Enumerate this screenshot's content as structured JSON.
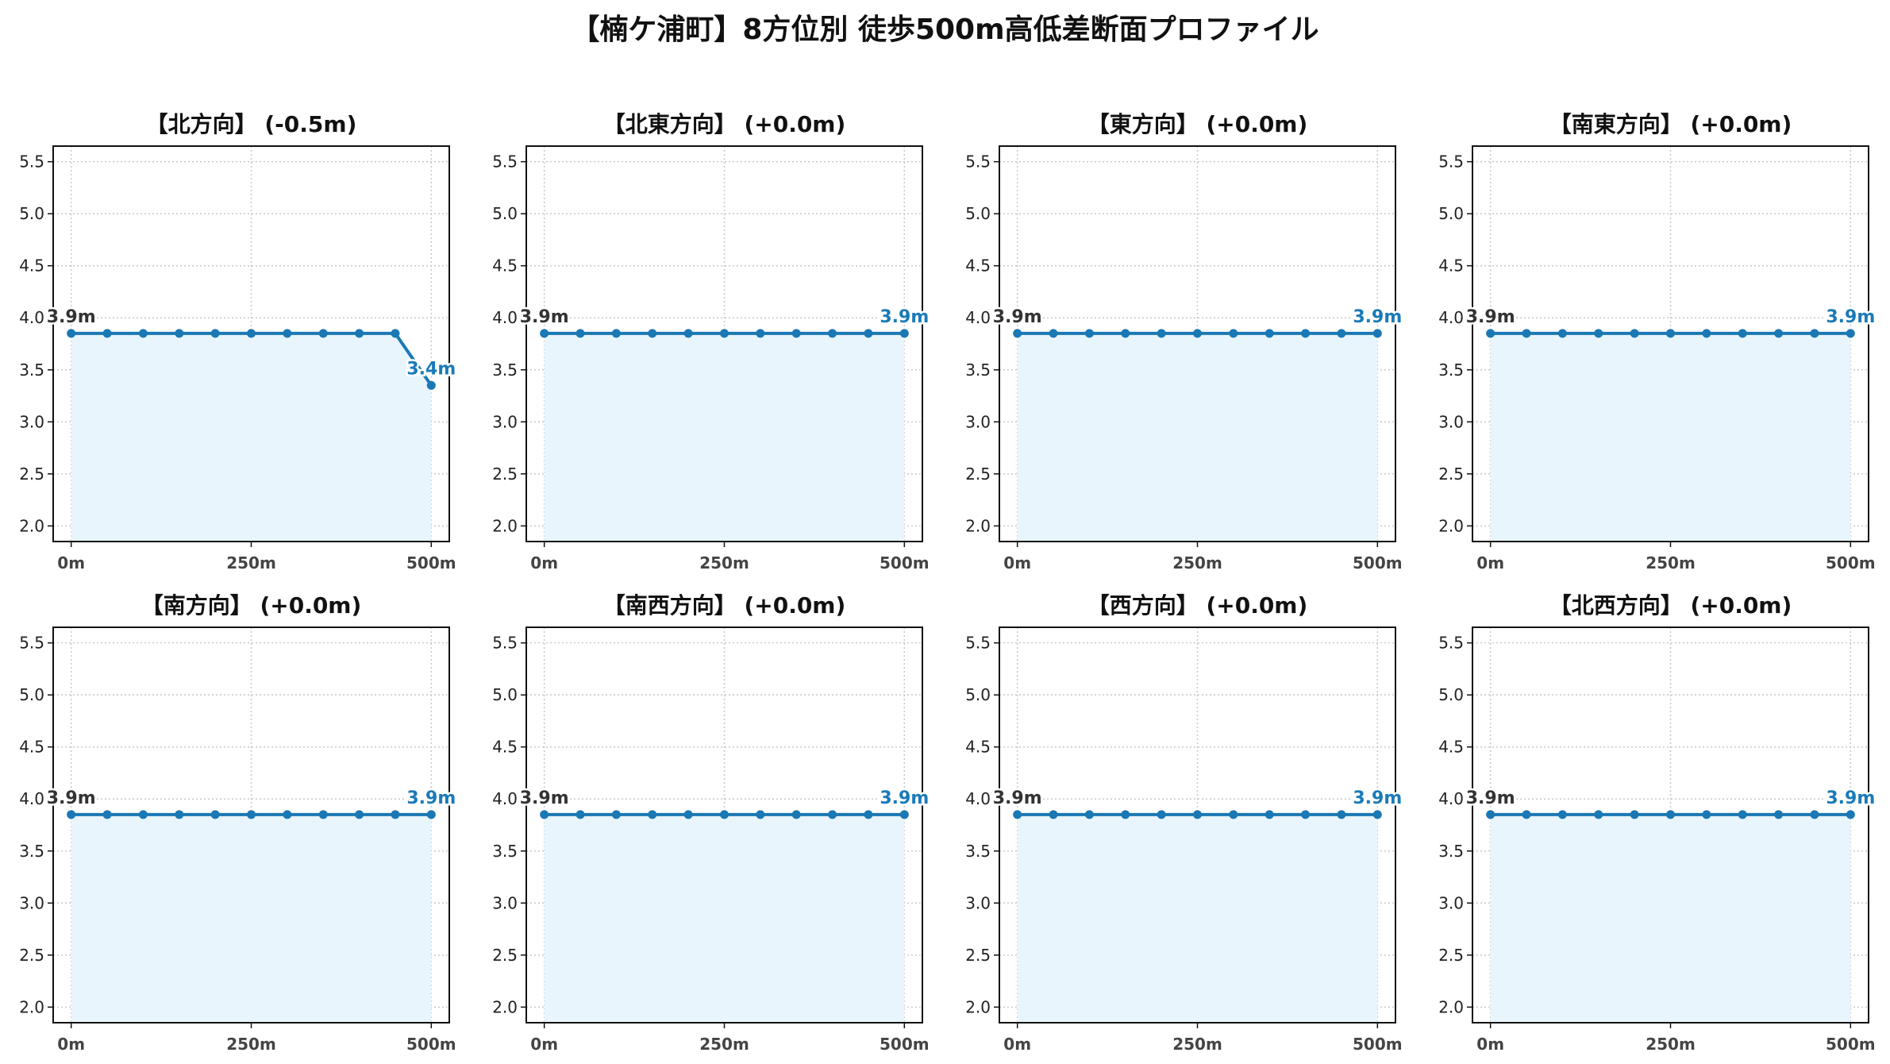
{
  "title": "【楠ケ浦町】8方位別 徒歩500m高低差断面プロファイル",
  "colors": {
    "line": "#1a78b4",
    "fill": "#e8f5fc",
    "grid": "#c8c8c8",
    "start_label": "#333333",
    "end_label": "#1a7ab8"
  },
  "chart_data": [
    {
      "type": "line",
      "title": "【北方向】 (-0.5m)",
      "x": [
        0,
        50,
        100,
        150,
        200,
        250,
        300,
        350,
        400,
        450,
        500
      ],
      "values": [
        3.85,
        3.85,
        3.85,
        3.85,
        3.85,
        3.85,
        3.85,
        3.85,
        3.85,
        3.85,
        3.35
      ],
      "xticks": [
        "0m",
        "250m",
        "500m"
      ],
      "yticks": [
        "2.0",
        "2.5",
        "3.0",
        "3.5",
        "4.0",
        "4.5",
        "5.0",
        "5.5"
      ],
      "ylim": [
        1.85,
        5.65
      ],
      "xlim": [
        -25,
        525
      ],
      "grid": true,
      "start_label": "3.9m",
      "end_label": "3.4m"
    },
    {
      "type": "line",
      "title": "【北東方向】 (+0.0m)",
      "x": [
        0,
        50,
        100,
        150,
        200,
        250,
        300,
        350,
        400,
        450,
        500
      ],
      "values": [
        3.85,
        3.85,
        3.85,
        3.85,
        3.85,
        3.85,
        3.85,
        3.85,
        3.85,
        3.85,
        3.85
      ],
      "xticks": [
        "0m",
        "250m",
        "500m"
      ],
      "yticks": [
        "2.0",
        "2.5",
        "3.0",
        "3.5",
        "4.0",
        "4.5",
        "5.0",
        "5.5"
      ],
      "ylim": [
        1.85,
        5.65
      ],
      "xlim": [
        -25,
        525
      ],
      "grid": true,
      "start_label": "3.9m",
      "end_label": "3.9m"
    },
    {
      "type": "line",
      "title": "【東方向】 (+0.0m)",
      "x": [
        0,
        50,
        100,
        150,
        200,
        250,
        300,
        350,
        400,
        450,
        500
      ],
      "values": [
        3.85,
        3.85,
        3.85,
        3.85,
        3.85,
        3.85,
        3.85,
        3.85,
        3.85,
        3.85,
        3.85
      ],
      "xticks": [
        "0m",
        "250m",
        "500m"
      ],
      "yticks": [
        "2.0",
        "2.5",
        "3.0",
        "3.5",
        "4.0",
        "4.5",
        "5.0",
        "5.5"
      ],
      "ylim": [
        1.85,
        5.65
      ],
      "xlim": [
        -25,
        525
      ],
      "grid": true,
      "start_label": "3.9m",
      "end_label": "3.9m"
    },
    {
      "type": "line",
      "title": "【南東方向】 (+0.0m)",
      "x": [
        0,
        50,
        100,
        150,
        200,
        250,
        300,
        350,
        400,
        450,
        500
      ],
      "values": [
        3.85,
        3.85,
        3.85,
        3.85,
        3.85,
        3.85,
        3.85,
        3.85,
        3.85,
        3.85,
        3.85
      ],
      "xticks": [
        "0m",
        "250m",
        "500m"
      ],
      "yticks": [
        "2.0",
        "2.5",
        "3.0",
        "3.5",
        "4.0",
        "4.5",
        "5.0",
        "5.5"
      ],
      "ylim": [
        1.85,
        5.65
      ],
      "xlim": [
        -25,
        525
      ],
      "grid": true,
      "start_label": "3.9m",
      "end_label": "3.9m"
    },
    {
      "type": "line",
      "title": "【南方向】 (+0.0m)",
      "x": [
        0,
        50,
        100,
        150,
        200,
        250,
        300,
        350,
        400,
        450,
        500
      ],
      "values": [
        3.85,
        3.85,
        3.85,
        3.85,
        3.85,
        3.85,
        3.85,
        3.85,
        3.85,
        3.85,
        3.85
      ],
      "xticks": [
        "0m",
        "250m",
        "500m"
      ],
      "yticks": [
        "2.0",
        "2.5",
        "3.0",
        "3.5",
        "4.0",
        "4.5",
        "5.0",
        "5.5"
      ],
      "ylim": [
        1.85,
        5.65
      ],
      "xlim": [
        -25,
        525
      ],
      "grid": true,
      "start_label": "3.9m",
      "end_label": "3.9m"
    },
    {
      "type": "line",
      "title": "【南西方向】 (+0.0m)",
      "x": [
        0,
        50,
        100,
        150,
        200,
        250,
        300,
        350,
        400,
        450,
        500
      ],
      "values": [
        3.85,
        3.85,
        3.85,
        3.85,
        3.85,
        3.85,
        3.85,
        3.85,
        3.85,
        3.85,
        3.85
      ],
      "xticks": [
        "0m",
        "250m",
        "500m"
      ],
      "yticks": [
        "2.0",
        "2.5",
        "3.0",
        "3.5",
        "4.0",
        "4.5",
        "5.0",
        "5.5"
      ],
      "ylim": [
        1.85,
        5.65
      ],
      "xlim": [
        -25,
        525
      ],
      "grid": true,
      "start_label": "3.9m",
      "end_label": "3.9m"
    },
    {
      "type": "line",
      "title": "【西方向】 (+0.0m)",
      "x": [
        0,
        50,
        100,
        150,
        200,
        250,
        300,
        350,
        400,
        450,
        500
      ],
      "values": [
        3.85,
        3.85,
        3.85,
        3.85,
        3.85,
        3.85,
        3.85,
        3.85,
        3.85,
        3.85,
        3.85
      ],
      "xticks": [
        "0m",
        "250m",
        "500m"
      ],
      "yticks": [
        "2.0",
        "2.5",
        "3.0",
        "3.5",
        "4.0",
        "4.5",
        "5.0",
        "5.5"
      ],
      "ylim": [
        1.85,
        5.65
      ],
      "xlim": [
        -25,
        525
      ],
      "grid": true,
      "start_label": "3.9m",
      "end_label": "3.9m"
    },
    {
      "type": "line",
      "title": "【北西方向】 (+0.0m)",
      "x": [
        0,
        50,
        100,
        150,
        200,
        250,
        300,
        350,
        400,
        450,
        500
      ],
      "values": [
        3.85,
        3.85,
        3.85,
        3.85,
        3.85,
        3.85,
        3.85,
        3.85,
        3.85,
        3.85,
        3.85
      ],
      "xticks": [
        "0m",
        "250m",
        "500m"
      ],
      "yticks": [
        "2.0",
        "2.5",
        "3.0",
        "3.5",
        "4.0",
        "4.5",
        "5.0",
        "5.5"
      ],
      "ylim": [
        1.85,
        5.65
      ],
      "xlim": [
        -25,
        525
      ],
      "grid": true,
      "start_label": "3.9m",
      "end_label": "3.9m"
    }
  ]
}
